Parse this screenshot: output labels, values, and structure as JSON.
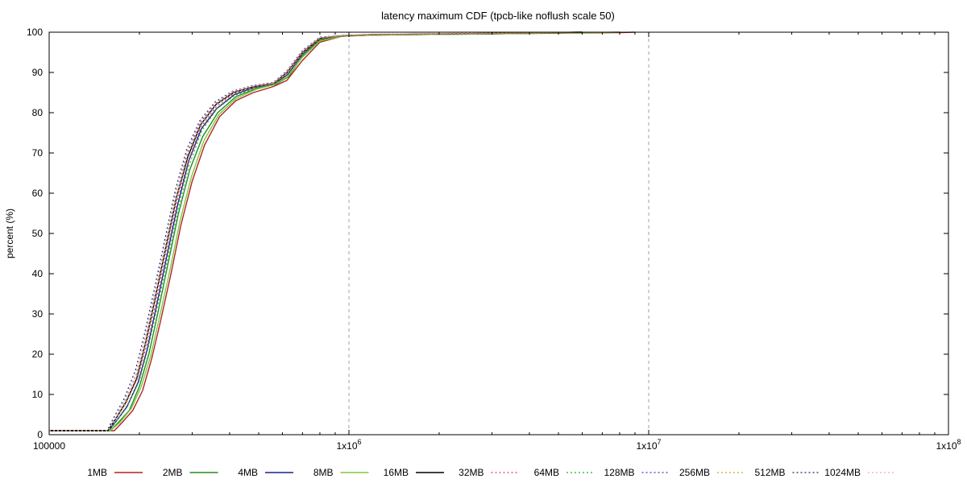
{
  "chart_data": {
    "type": "line",
    "title": "latency maximum CDF (tpcb-like noflush scale 50)",
    "xlabel": "",
    "ylabel": "percent (%)",
    "xscale": "log",
    "xlim": [
      100000,
      100000000
    ],
    "ylim": [
      0,
      100
    ],
    "x_ticks": [
      {
        "value": 100000,
        "base": "100000",
        "exp": ""
      },
      {
        "value": 1000000,
        "base": "1x10",
        "exp": "6"
      },
      {
        "value": 10000000,
        "base": "1x10",
        "exp": "7"
      },
      {
        "value": 100000000,
        "base": "1x10",
        "exp": "8"
      }
    ],
    "y_ticks": [
      "0",
      "10",
      "20",
      "30",
      "40",
      "50",
      "60",
      "70",
      "80",
      "90",
      "100"
    ],
    "grid": "vertical dashed at decades",
    "legend_position": "bottom",
    "series": [
      {
        "name": "1MB",
        "color": "#b22222",
        "style": "solid",
        "points": [
          [
            100000,
            1
          ],
          [
            165000,
            1
          ],
          [
            175000,
            3
          ],
          [
            190000,
            6
          ],
          [
            205000,
            11
          ],
          [
            220000,
            19
          ],
          [
            235000,
            28
          ],
          [
            255000,
            40
          ],
          [
            275000,
            52
          ],
          [
            300000,
            63
          ],
          [
            330000,
            72
          ],
          [
            370000,
            79
          ],
          [
            420000,
            83
          ],
          [
            480000,
            85
          ],
          [
            560000,
            86.5
          ],
          [
            620000,
            88
          ],
          [
            700000,
            93
          ],
          [
            800000,
            97.5
          ],
          [
            950000,
            99
          ],
          [
            1200000,
            99.3
          ],
          [
            3000000,
            99.6
          ],
          [
            8000000,
            99.9
          ],
          [
            9000000,
            100
          ]
        ]
      },
      {
        "name": "2MB",
        "color": "#228b22",
        "style": "solid",
        "points": [
          [
            100000,
            1
          ],
          [
            160000,
            1
          ],
          [
            170000,
            3
          ],
          [
            185000,
            6
          ],
          [
            200000,
            12
          ],
          [
            215000,
            20
          ],
          [
            230000,
            30
          ],
          [
            250000,
            43
          ],
          [
            270000,
            55
          ],
          [
            295000,
            66
          ],
          [
            325000,
            74
          ],
          [
            365000,
            80
          ],
          [
            420000,
            84
          ],
          [
            490000,
            86
          ],
          [
            570000,
            87
          ],
          [
            630000,
            89
          ],
          [
            700000,
            94
          ],
          [
            800000,
            98
          ],
          [
            950000,
            99.1
          ],
          [
            1200000,
            99.3
          ],
          [
            3000000,
            99.6
          ],
          [
            8000000,
            100
          ]
        ]
      },
      {
        "name": "4MB",
        "color": "#1f1f8f",
        "style": "solid",
        "points": [
          [
            100000,
            1
          ],
          [
            158000,
            1
          ],
          [
            168000,
            3.5
          ],
          [
            182000,
            7
          ],
          [
            198000,
            13
          ],
          [
            212000,
            21
          ],
          [
            228000,
            32
          ],
          [
            248000,
            45
          ],
          [
            268000,
            57
          ],
          [
            292000,
            68
          ],
          [
            322000,
            76
          ],
          [
            362000,
            81
          ],
          [
            415000,
            84.5
          ],
          [
            485000,
            86.3
          ],
          [
            565000,
            87.2
          ],
          [
            625000,
            89.5
          ],
          [
            700000,
            94.5
          ],
          [
            800000,
            98.3
          ],
          [
            950000,
            99.1
          ],
          [
            1200000,
            99.4
          ],
          [
            3000000,
            99.7
          ],
          [
            6000000,
            100
          ]
        ]
      },
      {
        "name": "8MB",
        "color": "#7fc93f",
        "style": "solid",
        "points": [
          [
            100000,
            1
          ],
          [
            160000,
            1
          ],
          [
            172000,
            3
          ],
          [
            188000,
            6.5
          ],
          [
            203000,
            12
          ],
          [
            218000,
            19.5
          ],
          [
            233000,
            29
          ],
          [
            253000,
            41
          ],
          [
            273000,
            53
          ],
          [
            298000,
            64
          ],
          [
            328000,
            73
          ],
          [
            368000,
            79.5
          ],
          [
            420000,
            83.5
          ],
          [
            490000,
            85.8
          ],
          [
            565000,
            87
          ],
          [
            625000,
            89
          ],
          [
            700000,
            93.8
          ],
          [
            800000,
            97.8
          ],
          [
            950000,
            99
          ],
          [
            1200000,
            99.3
          ],
          [
            3000000,
            99.6
          ],
          [
            8000000,
            100
          ]
        ]
      },
      {
        "name": "16MB",
        "color": "#000000",
        "style": "solid",
        "points": [
          [
            100000,
            1
          ],
          [
            157000,
            1
          ],
          [
            167000,
            4
          ],
          [
            180000,
            8
          ],
          [
            196000,
            14
          ],
          [
            210000,
            23
          ],
          [
            226000,
            34
          ],
          [
            246000,
            47
          ],
          [
            266000,
            59
          ],
          [
            290000,
            69
          ],
          [
            320000,
            77
          ],
          [
            360000,
            82
          ],
          [
            412000,
            85
          ],
          [
            482000,
            86.5
          ],
          [
            562000,
            87.3
          ],
          [
            622000,
            90
          ],
          [
            700000,
            95
          ],
          [
            800000,
            98.5
          ],
          [
            950000,
            99.1
          ],
          [
            1200000,
            99.4
          ],
          [
            3000000,
            99.7
          ],
          [
            6000000,
            100
          ]
        ]
      },
      {
        "name": "32MB",
        "color": "#e03c5a",
        "style": "dotted",
        "points": [
          [
            100000,
            1
          ],
          [
            157000,
            1
          ],
          [
            167000,
            4
          ],
          [
            181000,
            8
          ],
          [
            197000,
            14
          ],
          [
            211000,
            22
          ],
          [
            227000,
            33
          ],
          [
            247000,
            46
          ],
          [
            267000,
            58
          ],
          [
            291000,
            68
          ],
          [
            321000,
            76.5
          ],
          [
            361000,
            81.5
          ],
          [
            414000,
            84.8
          ],
          [
            484000,
            86.4
          ],
          [
            563000,
            87.2
          ],
          [
            623000,
            89.8
          ],
          [
            700000,
            94.8
          ],
          [
            800000,
            98.4
          ],
          [
            950000,
            99.1
          ],
          [
            1200000,
            99.4
          ],
          [
            3000000,
            99.7
          ],
          [
            6000000,
            100
          ]
        ]
      },
      {
        "name": "64MB",
        "color": "#1eb01e",
        "style": "dotted",
        "points": [
          [
            100000,
            1
          ],
          [
            158000,
            1
          ],
          [
            168000,
            3.5
          ],
          [
            183000,
            7.5
          ],
          [
            199000,
            13
          ],
          [
            213000,
            21
          ],
          [
            229000,
            31.5
          ],
          [
            249000,
            44
          ],
          [
            269000,
            56
          ],
          [
            293000,
            67
          ],
          [
            323000,
            75.5
          ],
          [
            363000,
            81
          ],
          [
            416000,
            84.3
          ],
          [
            486000,
            86.1
          ],
          [
            566000,
            87.1
          ],
          [
            626000,
            89.4
          ],
          [
            700000,
            94.3
          ],
          [
            800000,
            98.2
          ],
          [
            950000,
            99.1
          ],
          [
            1200000,
            99.4
          ],
          [
            3000000,
            99.7
          ],
          [
            7000000,
            100
          ]
        ]
      },
      {
        "name": "128MB",
        "color": "#3a3ad0",
        "style": "dotted",
        "points": [
          [
            100000,
            1
          ],
          [
            156000,
            1
          ],
          [
            166000,
            4
          ],
          [
            179000,
            8.5
          ],
          [
            195000,
            15
          ],
          [
            209000,
            24
          ],
          [
            225000,
            35
          ],
          [
            245000,
            48
          ],
          [
            265000,
            60
          ],
          [
            289000,
            70
          ],
          [
            319000,
            77.5
          ],
          [
            359000,
            82.3
          ],
          [
            411000,
            85.2
          ],
          [
            481000,
            86.6
          ],
          [
            561000,
            87.4
          ],
          [
            621000,
            90.2
          ],
          [
            700000,
            95.2
          ],
          [
            800000,
            98.6
          ],
          [
            950000,
            99.2
          ],
          [
            1200000,
            99.4
          ],
          [
            3000000,
            99.7
          ],
          [
            6000000,
            100
          ]
        ]
      },
      {
        "name": "256MB",
        "color": "#c9a227",
        "style": "dotted",
        "points": [
          [
            100000,
            1
          ],
          [
            157000,
            1
          ],
          [
            167000,
            4
          ],
          [
            180000,
            8
          ],
          [
            196000,
            14.5
          ],
          [
            210000,
            23
          ],
          [
            226000,
            34
          ],
          [
            246000,
            47
          ],
          [
            266000,
            59
          ],
          [
            290000,
            69.5
          ],
          [
            320000,
            77
          ],
          [
            360000,
            82
          ],
          [
            413000,
            85
          ],
          [
            483000,
            86.5
          ],
          [
            562000,
            87.3
          ],
          [
            622000,
            90
          ],
          [
            700000,
            95
          ],
          [
            800000,
            98.5
          ],
          [
            950000,
            99.1
          ],
          [
            1200000,
            99.4
          ],
          [
            3000000,
            99.7
          ],
          [
            6000000,
            100
          ]
        ]
      },
      {
        "name": "512MB",
        "color": "#1a2a6a",
        "style": "dotted",
        "points": [
          [
            100000,
            1
          ],
          [
            156000,
            1
          ],
          [
            165000,
            4.5
          ],
          [
            178000,
            9
          ],
          [
            194000,
            16
          ],
          [
            208000,
            25
          ],
          [
            224000,
            36
          ],
          [
            244000,
            49
          ],
          [
            264000,
            61
          ],
          [
            288000,
            71
          ],
          [
            318000,
            78
          ],
          [
            358000,
            82.7
          ],
          [
            410000,
            85.4
          ],
          [
            480000,
            86.8
          ],
          [
            560000,
            87.5
          ],
          [
            620000,
            90.4
          ],
          [
            700000,
            95.5
          ],
          [
            800000,
            98.8
          ],
          [
            950000,
            99.2
          ],
          [
            1200000,
            99.5
          ],
          [
            3000000,
            99.8
          ],
          [
            6000000,
            100
          ]
        ]
      },
      {
        "name": "1024MB",
        "color": "#ff9fb0",
        "style": "dotted",
        "points": [
          [
            100000,
            1
          ],
          [
            157000,
            1
          ],
          [
            166000,
            4
          ],
          [
            179000,
            8.5
          ],
          [
            195000,
            15
          ],
          [
            209000,
            24
          ],
          [
            225000,
            35
          ],
          [
            245000,
            48
          ],
          [
            265000,
            60
          ],
          [
            289000,
            70.5
          ],
          [
            319000,
            77.8
          ],
          [
            359000,
            82.5
          ],
          [
            411000,
            85.3
          ],
          [
            481000,
            86.7
          ],
          [
            561000,
            87.4
          ],
          [
            621000,
            90.3
          ],
          [
            700000,
            95.3
          ],
          [
            800000,
            98.7
          ],
          [
            950000,
            99.2
          ],
          [
            1200000,
            99.5
          ],
          [
            3000000,
            99.8
          ],
          [
            6000000,
            100
          ]
        ]
      }
    ]
  }
}
